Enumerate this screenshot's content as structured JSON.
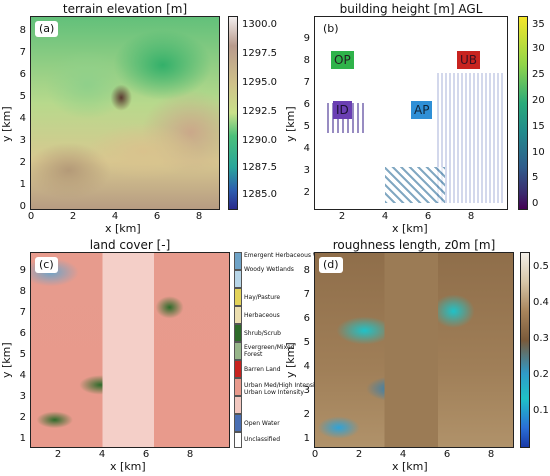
{
  "panels": {
    "a": {
      "tag": "(a)",
      "title": "terrain elevation [m]",
      "xlabel": "x [km]",
      "ylabel": "y [km]",
      "xticks": [
        "0",
        "2",
        "4",
        "6",
        "8"
      ],
      "yticks": [
        "0",
        "1",
        "2",
        "3",
        "4",
        "5",
        "6",
        "7",
        "8"
      ],
      "colorbar_ticks": [
        "1300.0",
        "1297.5",
        "1295.0",
        "1292.5",
        "1290.0",
        "1287.5",
        "1285.0"
      ]
    },
    "b": {
      "tag": "(b)",
      "title": "building height [m] AGL",
      "xlabel": "x [km]",
      "ylabel": "y [km]",
      "xticks": [
        "2",
        "4",
        "6",
        "8"
      ],
      "yticks": [
        "2",
        "3",
        "4",
        "5",
        "6",
        "7",
        "8",
        "9"
      ],
      "colorbar_ticks": [
        "35",
        "30",
        "25",
        "20",
        "15",
        "10",
        "5",
        "0"
      ],
      "sites": [
        {
          "label": "OP",
          "color": "#2fb34a",
          "text_color": "#222222"
        },
        {
          "label": "UB",
          "color": "#c8231f",
          "text_color": "#3a1020"
        },
        {
          "label": "ID",
          "color": "#6a3fb3",
          "text_color": "#1a1030"
        },
        {
          "label": "AP",
          "color": "#2f8fd6",
          "text_color": "#10253a"
        }
      ]
    },
    "c": {
      "tag": "(c)",
      "title": "land cover [-]",
      "xlabel": "x [km]",
      "ylabel": "y [km]",
      "xticks": [
        "2",
        "4",
        "6",
        "8"
      ],
      "yticks": [
        "1",
        "2",
        "3",
        "4",
        "5",
        "6",
        "7",
        "8",
        "9"
      ],
      "legend": [
        {
          "label": "Emergent Herbaceous Wetlands",
          "color": "#6fa3c7"
        },
        {
          "label": "Woody Wetlands",
          "color": "#b8d6e8"
        },
        {
          "label": "Hay/Pasture",
          "color": "#e3d35a"
        },
        {
          "label": "Herbaceous",
          "color": "#ecdfb0"
        },
        {
          "label": "Shrub/Scrub",
          "color": "#2e6b2a"
        },
        {
          "label": "Evergreen/Mixed Forest",
          "color": "#97b58a"
        },
        {
          "label": "Barren Land",
          "color": "#c8231f"
        },
        {
          "label": "Urban Med/High Intensity",
          "color": "#e89a8c"
        },
        {
          "label": "Urban Low Intensity",
          "color": "#f2c8c0"
        },
        {
          "label": "Open Water",
          "color": "#4a6fb3"
        },
        {
          "label": "Unclassified",
          "color": "#ffffff"
        }
      ]
    },
    "d": {
      "tag": "(d)",
      "title": "roughness length, z0m [m]",
      "xlabel": "x [km]",
      "ylabel": "y [km]",
      "xticks": [
        "0",
        "2",
        "4",
        "6",
        "8"
      ],
      "yticks": [
        "1",
        "2",
        "3",
        "4",
        "5",
        "6",
        "7",
        "8"
      ],
      "colorbar_ticks": [
        "0.5",
        "0.4",
        "0.3",
        "0.2",
        "0.1"
      ]
    }
  }
}
